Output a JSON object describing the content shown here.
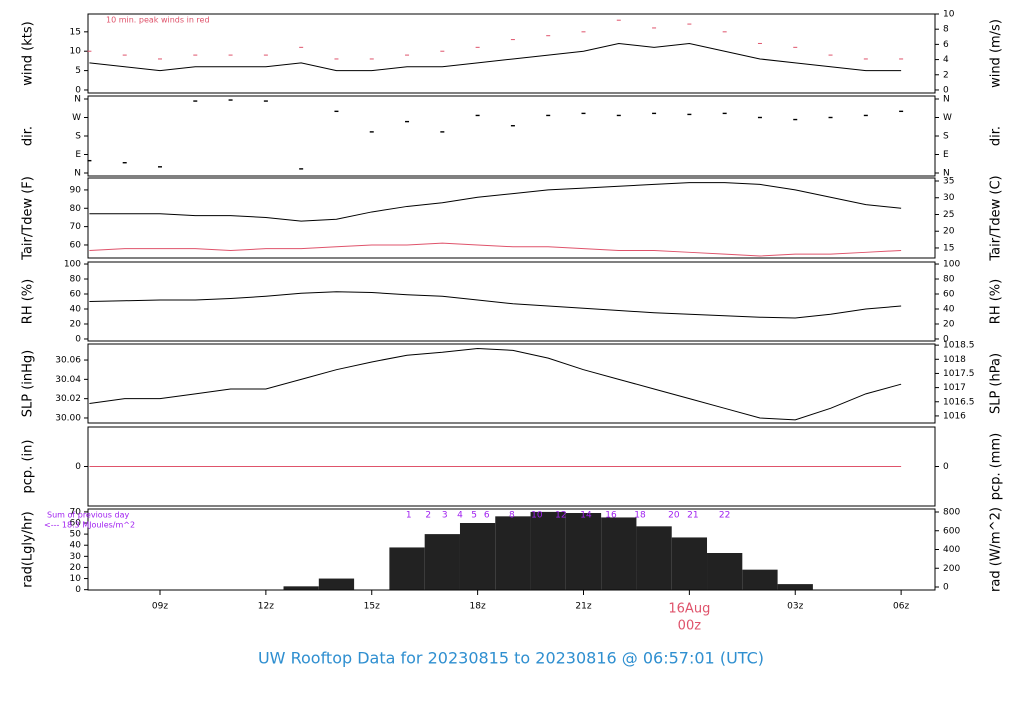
{
  "chart_data": {
    "type": "multi-panel",
    "title": "UW Rooftop Data for 20230815  to  20230816 @ 06:57:01  (UTC)",
    "x": [
      7,
      8,
      9,
      10,
      11,
      12,
      13,
      14,
      15,
      16,
      17,
      18,
      19,
      20,
      21,
      22,
      23,
      24,
      25,
      26,
      27,
      28,
      29,
      30
    ],
    "xlim": [
      6.96,
      30.96
    ],
    "xticks": [
      {
        "value": 9,
        "label": "09z"
      },
      {
        "value": 12,
        "label": "12z"
      },
      {
        "value": 15,
        "label": "15z"
      },
      {
        "value": 18,
        "label": "18z"
      },
      {
        "value": 21,
        "label": "21z"
      },
      {
        "value": 24,
        "label": "00z"
      },
      {
        "value": 27,
        "label": "03z"
      },
      {
        "value": 30,
        "label": "06z"
      }
    ],
    "date_label": {
      "value": 24,
      "label": "16Aug"
    },
    "panels": [
      {
        "ylabel": "wind (kts)",
        "y2label": "wind (m/s)",
        "ylim": [
          -0.78,
          19.6
        ],
        "yticks": [
          0,
          5,
          10,
          15
        ],
        "y2lim": [
          -0.4,
          10
        ],
        "y2ticks": [
          0,
          2,
          4,
          6,
          8,
          10
        ],
        "annotation": "10 min. peak winds in red",
        "series": [
          {
            "type": "line",
            "color": "#000000",
            "values": [
              7,
              6,
              5,
              6,
              6,
              6,
              7,
              5,
              5,
              6,
              6,
              7,
              8,
              9,
              10,
              12,
              11,
              12,
              10,
              8,
              7,
              6,
              5,
              5
            ]
          },
          {
            "type": "dash",
            "color": "#df536b",
            "values": [
              10,
              9,
              8,
              9,
              9,
              9,
              11,
              8,
              8,
              9,
              10,
              11,
              13,
              14,
              15,
              18,
              16,
              17,
              15,
              12,
              11,
              9,
              8,
              8
            ]
          }
        ]
      },
      {
        "ylabel": "dir.",
        "y2label": "dir.",
        "ylim": [
          -14.6,
          374.6
        ],
        "yticks": [
          {
            "value": 360,
            "label": "N"
          },
          {
            "value": 270,
            "label": "W"
          },
          {
            "value": 180,
            "label": "S"
          },
          {
            "value": 90,
            "label": "E"
          },
          {
            "value": 0,
            "label": "N"
          }
        ],
        "y2lim": [
          -14.6,
          374.6
        ],
        "y2ticks": [
          {
            "value": 360,
            "label": "N"
          },
          {
            "value": 270,
            "label": "W"
          },
          {
            "value": 180,
            "label": "S"
          },
          {
            "value": 90,
            "label": "E"
          },
          {
            "value": 0,
            "label": "N"
          }
        ],
        "series": [
          {
            "type": "scatter",
            "color": "#000000",
            "values": [
              60,
              50,
              30,
              350,
              355,
              350,
              20,
              300,
              200,
              250,
              200,
              280,
              230,
              280,
              290,
              280,
              290,
              285,
              290,
              270,
              260,
              270,
              280,
              300
            ]
          }
        ]
      },
      {
        "ylabel": "Tair/Tdew (F)",
        "y2label": "Tair/Tdew (C)",
        "ylim": [
          52.9,
          96.5
        ],
        "yticks": [
          60,
          70,
          80,
          90
        ],
        "y2lim": [
          12.0,
          35.9
        ],
        "y2ticks": [
          15,
          20,
          25,
          30,
          35
        ],
        "series": [
          {
            "type": "line",
            "color": "#000000",
            "values": [
              77,
              77,
              77,
              76,
              76,
              75,
              73,
              74,
              78,
              81,
              83,
              86,
              88,
              90,
              91,
              92,
              93,
              94,
              94,
              93,
              90,
              86,
              82,
              80
            ]
          },
          {
            "type": "line",
            "color": "#df536b",
            "values": [
              57,
              58,
              58,
              58,
              57,
              58,
              58,
              59,
              60,
              60,
              61,
              60,
              59,
              59,
              58,
              57,
              57,
              56,
              55,
              54,
              55,
              55,
              56,
              57
            ]
          }
        ]
      },
      {
        "ylabel": "RH (%)",
        "y2label": "RH (%)",
        "ylim": [
          -2.7,
          102.7
        ],
        "yticks": [
          0,
          20,
          40,
          60,
          80,
          100
        ],
        "y2lim": [
          -2.7,
          102.7
        ],
        "y2ticks": [
          0,
          20,
          40,
          60,
          80,
          100
        ],
        "series": [
          {
            "type": "line",
            "color": "#000000",
            "values": [
              50,
              51,
              52,
              52,
              54,
              57,
              61,
              63,
              62,
              59,
              57,
              52,
              47,
              44,
              41,
              38,
              35,
              33,
              31,
              29,
              28,
              33,
              40,
              44
            ]
          }
        ]
      },
      {
        "ylabel": "SLP (inHg)",
        "y2label": "SLP (hPa)",
        "ylim": [
          29.9948,
          30.0766
        ],
        "yticks": [
          {
            "value": 30.0,
            "label": "30.00"
          },
          {
            "value": 30.02,
            "label": "30.02"
          },
          {
            "value": 30.04,
            "label": "30.04"
          },
          {
            "value": 30.06,
            "label": "30.06"
          }
        ],
        "y2lim": [
          1015.75,
          1018.54
        ],
        "y2ticks": [
          1016,
          1016.5,
          1017,
          1017.5,
          1018,
          1018.5
        ],
        "series": [
          {
            "type": "line",
            "color": "#000000",
            "values": [
              30.015,
              30.02,
              30.02,
              30.025,
              30.03,
              30.03,
              30.04,
              30.05,
              30.058,
              30.065,
              30.068,
              30.072,
              30.07,
              30.062,
              30.05,
              30.04,
              30.03,
              30.02,
              30.01,
              30.0,
              29.998,
              30.01,
              30.025,
              30.035
            ]
          }
        ]
      },
      {
        "ylabel": "pcp. (in)",
        "y2label": "pcp. (mm)",
        "ylim": [
          -1,
          1
        ],
        "yticks": [
          0
        ],
        "y2lim": [
          -1,
          1
        ],
        "y2ticks": [
          0
        ],
        "series": [
          {
            "type": "line",
            "color": "#df536b",
            "values": [
              0,
              0,
              0,
              0,
              0,
              0,
              0,
              0,
              0,
              0,
              0,
              0,
              0,
              0,
              0,
              0,
              0,
              0,
              0,
              0,
              0,
              0,
              0,
              0
            ]
          }
        ]
      },
      {
        "ylabel": "rad(Lgly/hr)",
        "y2label": "rad (W/m^2)",
        "ylim": [
          -0.3,
          72.6
        ],
        "yticks": [
          0,
          10,
          20,
          30,
          40,
          50,
          60,
          70
        ],
        "y2lim": [
          -32,
          832
        ],
        "y2ticks": [
          0,
          200,
          400,
          600,
          800
        ],
        "annotations": [
          "Sum of previous day",
          "<--- 18.3 MJoules/m^2"
        ],
        "hour_labels": [
          {
            "value": 16.05,
            "label": "1"
          },
          {
            "value": 16.6,
            "label": "2"
          },
          {
            "value": 17.07,
            "label": "3"
          },
          {
            "value": 17.5,
            "label": "4"
          },
          {
            "value": 17.9,
            "label": "5"
          },
          {
            "value": 18.26,
            "label": "6"
          },
          {
            "value": 18.97,
            "label": "8"
          },
          {
            "value": 19.68,
            "label": "10"
          },
          {
            "value": 20.36,
            "label": "12"
          },
          {
            "value": 21.07,
            "label": "14"
          },
          {
            "value": 21.78,
            "label": "16"
          },
          {
            "value": 22.6,
            "label": "18"
          },
          {
            "value": 23.56,
            "label": "20"
          },
          {
            "value": 24.1,
            "label": "21"
          },
          {
            "value": 25.0,
            "label": "22"
          }
        ],
        "series": [
          {
            "type": "bar",
            "color": "#222222",
            "values": [
              0,
              0,
              0,
              0,
              0,
              0,
              3,
              10,
              0,
              38,
              50,
              60,
              66,
              70,
              69,
              65,
              57,
              47,
              33,
              18,
              5,
              0,
              0,
              0
            ]
          }
        ]
      }
    ]
  }
}
